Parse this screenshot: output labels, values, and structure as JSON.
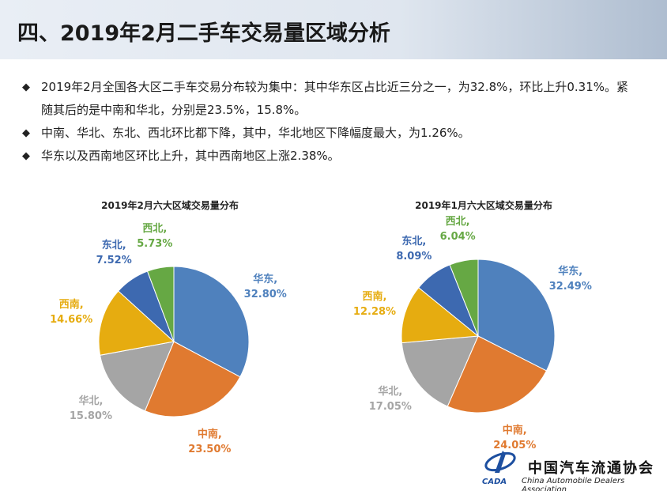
{
  "header": {
    "title": "四、2019年2月二手车交易量区域分析"
  },
  "bullets": [
    "2019年2月全国各大区二手车交易分布较为集中：其中华东区占比近三分之一，为32.8%，环比上升0.31%。紧随其后的是中南和华北，分别是23.5%，15.8%。",
    "中南、华北、东北、西北环比都下降，其中，华北地区下降幅度最大，为1.26%。",
    "华东以及西南地区环比上升，其中西南地区上涨2.38%。"
  ],
  "logo": {
    "name": "中国汽车流通协会",
    "english": "China Automobile Dealers Association",
    "abbr": "CADA"
  },
  "chart_data": [
    {
      "type": "pie",
      "title": "2019年2月六大区域交易量分布",
      "values": [
        32.8,
        23.5,
        15.8,
        14.66,
        7.52,
        5.73
      ],
      "value_labels": [
        "华东, 32.80%",
        "中南, 23.50%",
        "华北, 15.80%",
        "西南, 14.66%",
        "东北, 7.52%",
        "西北, 5.73%"
      ],
      "colors": [
        "#4f81bd",
        "#e07a30",
        "#a5a5a5",
        "#e6ac10",
        "#3d69b0",
        "#66a844"
      ]
    },
    {
      "type": "pie",
      "title": "2019年1月六大区域交易量分布",
      "values": [
        32.49,
        24.05,
        17.05,
        12.28,
        8.09,
        6.04
      ],
      "value_labels": [
        "华东, 32.49%",
        "中南, 24.05%",
        "华北, 17.05%",
        "西南, 12.28%",
        "东北, 8.09%",
        "西北, 6.04%"
      ],
      "colors": [
        "#4f81bd",
        "#e07a30",
        "#a5a5a5",
        "#e6ac10",
        "#3d69b0",
        "#66a844"
      ]
    }
  ]
}
